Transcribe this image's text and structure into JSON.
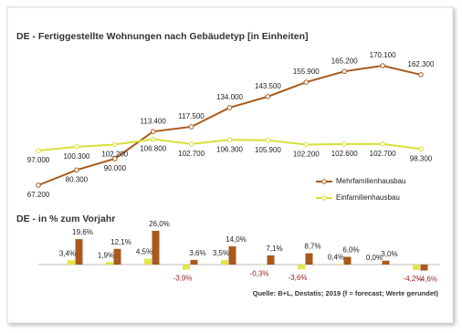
{
  "chart_data": [
    {
      "type": "line",
      "title": "DE - Fertiggestellte Wohnungen nach Gebäudetyp [in Einheiten]",
      "categories": [
        null,
        null,
        null,
        null,
        null,
        null,
        null,
        null,
        null,
        null,
        null
      ],
      "series": [
        {
          "name": "Mehrfamilienhausbau",
          "color": "#a85a1e",
          "values": [
            67200,
            80300,
            90000,
            113400,
            117500,
            134000,
            143500,
            155900,
            165200,
            170100,
            162300
          ],
          "value_labels": [
            "67.200",
            "80.300",
            "90.000",
            "113.400",
            "117.500",
            "134.000",
            "143.500",
            "155.900",
            "165.200",
            "170.100",
            "162.300"
          ]
        },
        {
          "name": "Einfamilienhausbau",
          "color": "#d6e036",
          "values": [
            97000,
            100300,
            102200,
            106800,
            102700,
            106300,
            105900,
            102200,
            102600,
            102700,
            98300
          ],
          "value_labels": [
            "97.000",
            "100.300",
            "102.200",
            "106.800",
            "102.700",
            "106.300",
            "105.900",
            "102.200",
            "102.600",
            "102.700",
            "98.300"
          ]
        }
      ]
    },
    {
      "type": "bar",
      "title": "DE - in % zum Vorjahr",
      "source": "Quelle: B+L, Destatis; 2019 (f = forecast; Werte gerundet)",
      "categories": [
        null,
        null,
        null,
        null,
        null,
        null,
        null,
        null,
        null,
        null
      ],
      "series": [
        {
          "color": "#e2e54a",
          "values": [
            3.4,
            1.9,
            4.5,
            -3.9,
            3.5,
            -0.3,
            -3.6,
            0.4,
            0.0,
            -4.2
          ],
          "value_labels": [
            "3,4%",
            "1,9%",
            "4,5%",
            "-3,9%",
            "3,5%",
            "-0,3%",
            "-3,6%",
            "0,4%",
            "0,0%",
            "-4,2%"
          ]
        },
        {
          "color": "#a85a1e",
          "values": [
            19.6,
            12.1,
            26.0,
            3.6,
            14.0,
            7.1,
            8.7,
            6.0,
            3.0,
            -4.6
          ],
          "value_labels": [
            "19,6%",
            "12,1%",
            "26,0%",
            "3,6%",
            "14,0%",
            "7,1%",
            "8,7%",
            "6,0%",
            "3,0%",
            "-4,6%"
          ]
        }
      ]
    }
  ]
}
